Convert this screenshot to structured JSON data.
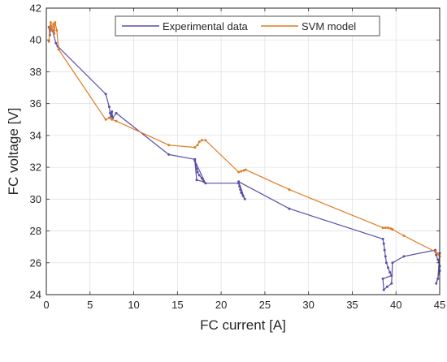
{
  "chart_data": {
    "type": "line",
    "xlabel": "FC current [A]",
    "ylabel": "FC voltage [V]",
    "xlim": [
      0,
      45
    ],
    "ylim": [
      24,
      42
    ],
    "xticks": [
      0,
      5,
      10,
      15,
      20,
      25,
      30,
      35,
      40,
      45
    ],
    "yticks": [
      24,
      26,
      28,
      30,
      32,
      34,
      36,
      38,
      40,
      42
    ],
    "xtick_labels": [
      "0",
      "5",
      "10",
      "15",
      "20",
      "25",
      "30",
      "35",
      "40",
      "45"
    ],
    "ytick_labels": [
      "24",
      "26",
      "28",
      "30",
      "32",
      "34",
      "36",
      "38",
      "40",
      "42"
    ],
    "grid": true,
    "legend_position": "top-center",
    "series": [
      {
        "name": "Experimental data",
        "color": "#5a4fa8",
        "points": [
          [
            0.3,
            40.8
          ],
          [
            0.4,
            40.3
          ],
          [
            0.5,
            40.9
          ],
          [
            0.7,
            40.6
          ],
          [
            1.1,
            39.8
          ],
          [
            1.3,
            39.6
          ],
          [
            6.8,
            36.6
          ],
          [
            7.2,
            35.8
          ],
          [
            7.3,
            35.4
          ],
          [
            7.4,
            35.2
          ],
          [
            7.5,
            35.5
          ],
          [
            7.6,
            35.1
          ],
          [
            8.0,
            35.4
          ],
          [
            14.0,
            32.8
          ],
          [
            17.0,
            32.5
          ],
          [
            17.1,
            32.2
          ],
          [
            17.2,
            31.9
          ],
          [
            17.3,
            31.7
          ],
          [
            17.5,
            31.5
          ],
          [
            17.8,
            31.3
          ],
          [
            18.0,
            31.1
          ],
          [
            17.2,
            31.2
          ],
          [
            17.0,
            32.4
          ],
          [
            18.2,
            31.0
          ],
          [
            22.0,
            31.0
          ],
          [
            22.1,
            30.8
          ],
          [
            22.2,
            30.6
          ],
          [
            22.3,
            30.4
          ],
          [
            22.5,
            30.2
          ],
          [
            22.7,
            30.0
          ],
          [
            22.0,
            31.1
          ],
          [
            27.8,
            29.4
          ],
          [
            38.5,
            27.5
          ],
          [
            38.6,
            27.2
          ],
          [
            38.7,
            26.8
          ],
          [
            38.8,
            26.4
          ],
          [
            38.9,
            26.0
          ],
          [
            39.1,
            25.7
          ],
          [
            39.3,
            25.4
          ],
          [
            39.5,
            25.2
          ],
          [
            38.5,
            25.0
          ],
          [
            38.6,
            24.3
          ],
          [
            39.0,
            24.5
          ],
          [
            39.5,
            24.7
          ],
          [
            39.6,
            26.0
          ],
          [
            40.9,
            26.4
          ],
          [
            44.5,
            26.8
          ],
          [
            44.6,
            26.5
          ],
          [
            44.8,
            26.2
          ],
          [
            45.0,
            25.8
          ],
          [
            45.0,
            25.5
          ],
          [
            44.6,
            24.7
          ],
          [
            44.8,
            25.0
          ],
          [
            45.0,
            26.6
          ]
        ]
      },
      {
        "name": "SVM model",
        "color": "#e07b24",
        "points": [
          [
            0.3,
            39.9
          ],
          [
            0.4,
            40.8
          ],
          [
            0.5,
            41.1
          ],
          [
            0.6,
            40.6
          ],
          [
            0.8,
            41.0
          ],
          [
            0.9,
            40.4
          ],
          [
            1.0,
            41.1
          ],
          [
            1.2,
            40.6
          ],
          [
            1.4,
            39.4
          ],
          [
            6.8,
            35.0
          ],
          [
            7.2,
            35.1
          ],
          [
            7.5,
            35.0
          ],
          [
            8.0,
            34.9
          ],
          [
            14.0,
            33.4
          ],
          [
            17.0,
            33.25
          ],
          [
            17.3,
            33.4
          ],
          [
            17.5,
            33.6
          ],
          [
            17.8,
            33.7
          ],
          [
            18.2,
            33.7
          ],
          [
            22.0,
            31.7
          ],
          [
            22.3,
            31.75
          ],
          [
            22.6,
            31.8
          ],
          [
            22.8,
            31.85
          ],
          [
            27.8,
            30.6
          ],
          [
            38.5,
            28.2
          ],
          [
            38.8,
            28.2
          ],
          [
            39.1,
            28.2
          ],
          [
            39.4,
            28.15
          ],
          [
            39.6,
            28.1
          ],
          [
            40.9,
            27.7
          ],
          [
            44.5,
            26.7
          ],
          [
            44.7,
            26.6
          ],
          [
            44.9,
            26.5
          ],
          [
            45.0,
            26.4
          ]
        ]
      }
    ]
  }
}
